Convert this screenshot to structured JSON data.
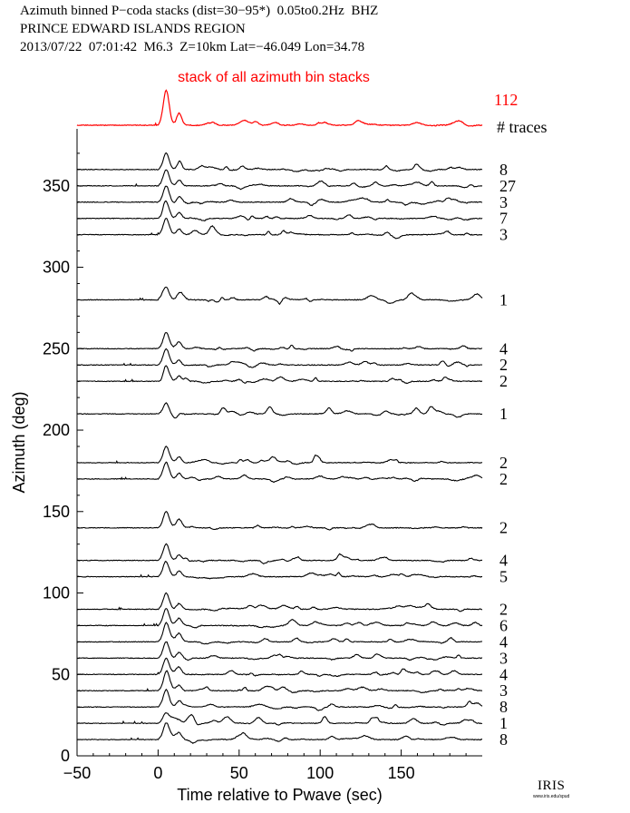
{
  "header": {
    "line1": "Azimuth binned P−coda stacks (dist=30−95*)  0.05to0.2Hz  BHZ",
    "line2": "PRINCE EDWARD ISLANDS REGION",
    "line3": "2013/07/22  07:01:42  M6.3  Z=10km Lat=−46.049 Lon=34.78"
  },
  "colors": {
    "stack": "#ff0000",
    "trace": "#000000",
    "axis": "#000000"
  },
  "chart_data": {
    "type": "line",
    "title": "stack of all azimuth bin stacks",
    "xlabel": "Time relative to Pwave (sec)",
    "ylabel": "Azimuth (deg)",
    "xlim": [
      -50,
      200
    ],
    "ylim": [
      0,
      385
    ],
    "xticks": [
      -50,
      0,
      50,
      100,
      150
    ],
    "yticks": [
      0,
      50,
      100,
      150,
      200,
      250,
      300,
      350
    ],
    "grid": false,
    "stack_total_traces": "112",
    "traces_header": "# traces",
    "series": [
      {
        "azimuth": 360,
        "traces": "8"
      },
      {
        "azimuth": 350,
        "traces": "27"
      },
      {
        "azimuth": 340,
        "traces": "3"
      },
      {
        "azimuth": 330,
        "traces": "7"
      },
      {
        "azimuth": 320,
        "traces": "3"
      },
      {
        "azimuth": 280,
        "traces": "1"
      },
      {
        "azimuth": 250,
        "traces": "4"
      },
      {
        "azimuth": 240,
        "traces": "2"
      },
      {
        "azimuth": 230,
        "traces": "2"
      },
      {
        "azimuth": 210,
        "traces": "1"
      },
      {
        "azimuth": 180,
        "traces": "2"
      },
      {
        "azimuth": 170,
        "traces": "2"
      },
      {
        "azimuth": 140,
        "traces": "2"
      },
      {
        "azimuth": 120,
        "traces": "4"
      },
      {
        "azimuth": 110,
        "traces": "5"
      },
      {
        "azimuth": 90,
        "traces": "2"
      },
      {
        "azimuth": 80,
        "traces": "6"
      },
      {
        "azimuth": 70,
        "traces": "4"
      },
      {
        "azimuth": 60,
        "traces": "3"
      },
      {
        "azimuth": 50,
        "traces": "4"
      },
      {
        "azimuth": 40,
        "traces": "3"
      },
      {
        "azimuth": 30,
        "traces": "8"
      },
      {
        "azimuth": 20,
        "traces": "1"
      },
      {
        "azimuth": 10,
        "traces": "8"
      }
    ]
  },
  "logo": {
    "name": "IRIS",
    "url_text": "www.iris.edu/spud"
  }
}
